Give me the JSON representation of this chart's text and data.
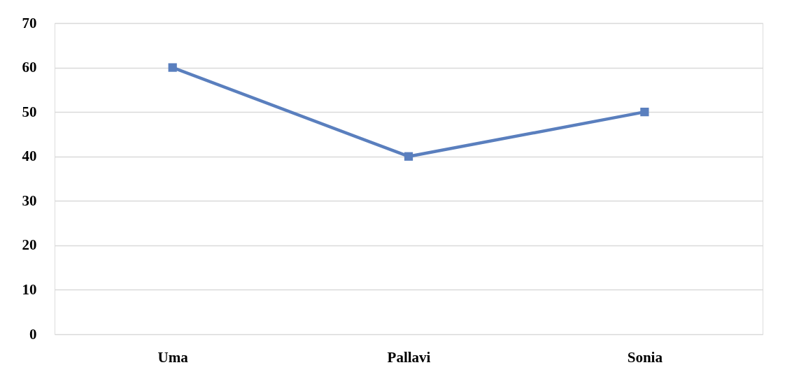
{
  "chart_data": {
    "type": "line",
    "categories": [
      "Uma",
      "Pallavi",
      "Sonia"
    ],
    "series": [
      {
        "color": "#5a7fbe",
        "values": [
          60,
          40,
          50
        ]
      }
    ],
    "ylim": [
      0,
      70
    ],
    "yticks": [
      0,
      10,
      20,
      30,
      40,
      50,
      60,
      70
    ],
    "grid": "y",
    "marker": "square",
    "line_style": "solid",
    "legend": false
  }
}
